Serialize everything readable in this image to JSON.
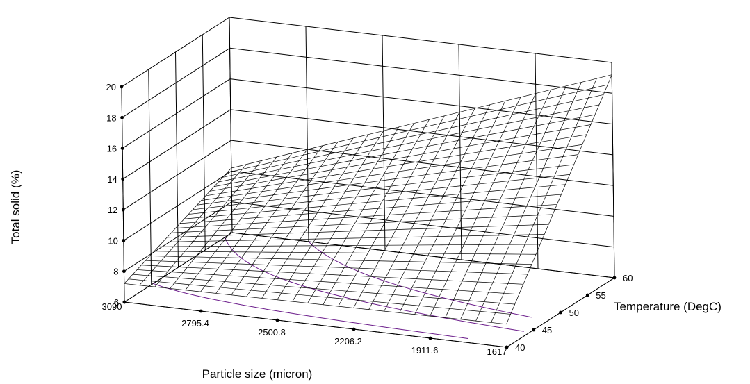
{
  "chart_data": {
    "type": "surface3d",
    "xlabel": "Particle size (micron)",
    "ylabel": "Temperature (DegC)",
    "zlabel": "Total solid (%)",
    "x_ticks": [
      3090,
      2795.4,
      2500.8,
      2206.2,
      1911.6,
      1617
    ],
    "y_ticks": [
      40,
      45,
      50,
      55,
      60
    ],
    "z_ticks": [
      6,
      8,
      10,
      12,
      14,
      16,
      18,
      20
    ],
    "xlim": [
      3090,
      1617
    ],
    "ylim": [
      40,
      60
    ],
    "zlim": [
      6,
      20
    ],
    "corner_values": [
      {
        "x": 3090,
        "y": 40,
        "z": 7.2
      },
      {
        "x": 1617,
        "y": 40,
        "z": 7.5
      },
      {
        "x": 3090,
        "y": 60,
        "z": 10.2
      },
      {
        "x": 1617,
        "y": 60,
        "z": 19.2
      }
    ],
    "grid_resolution": 25,
    "contour_color": "#6a1b8a",
    "mesh_color": "#000000"
  }
}
